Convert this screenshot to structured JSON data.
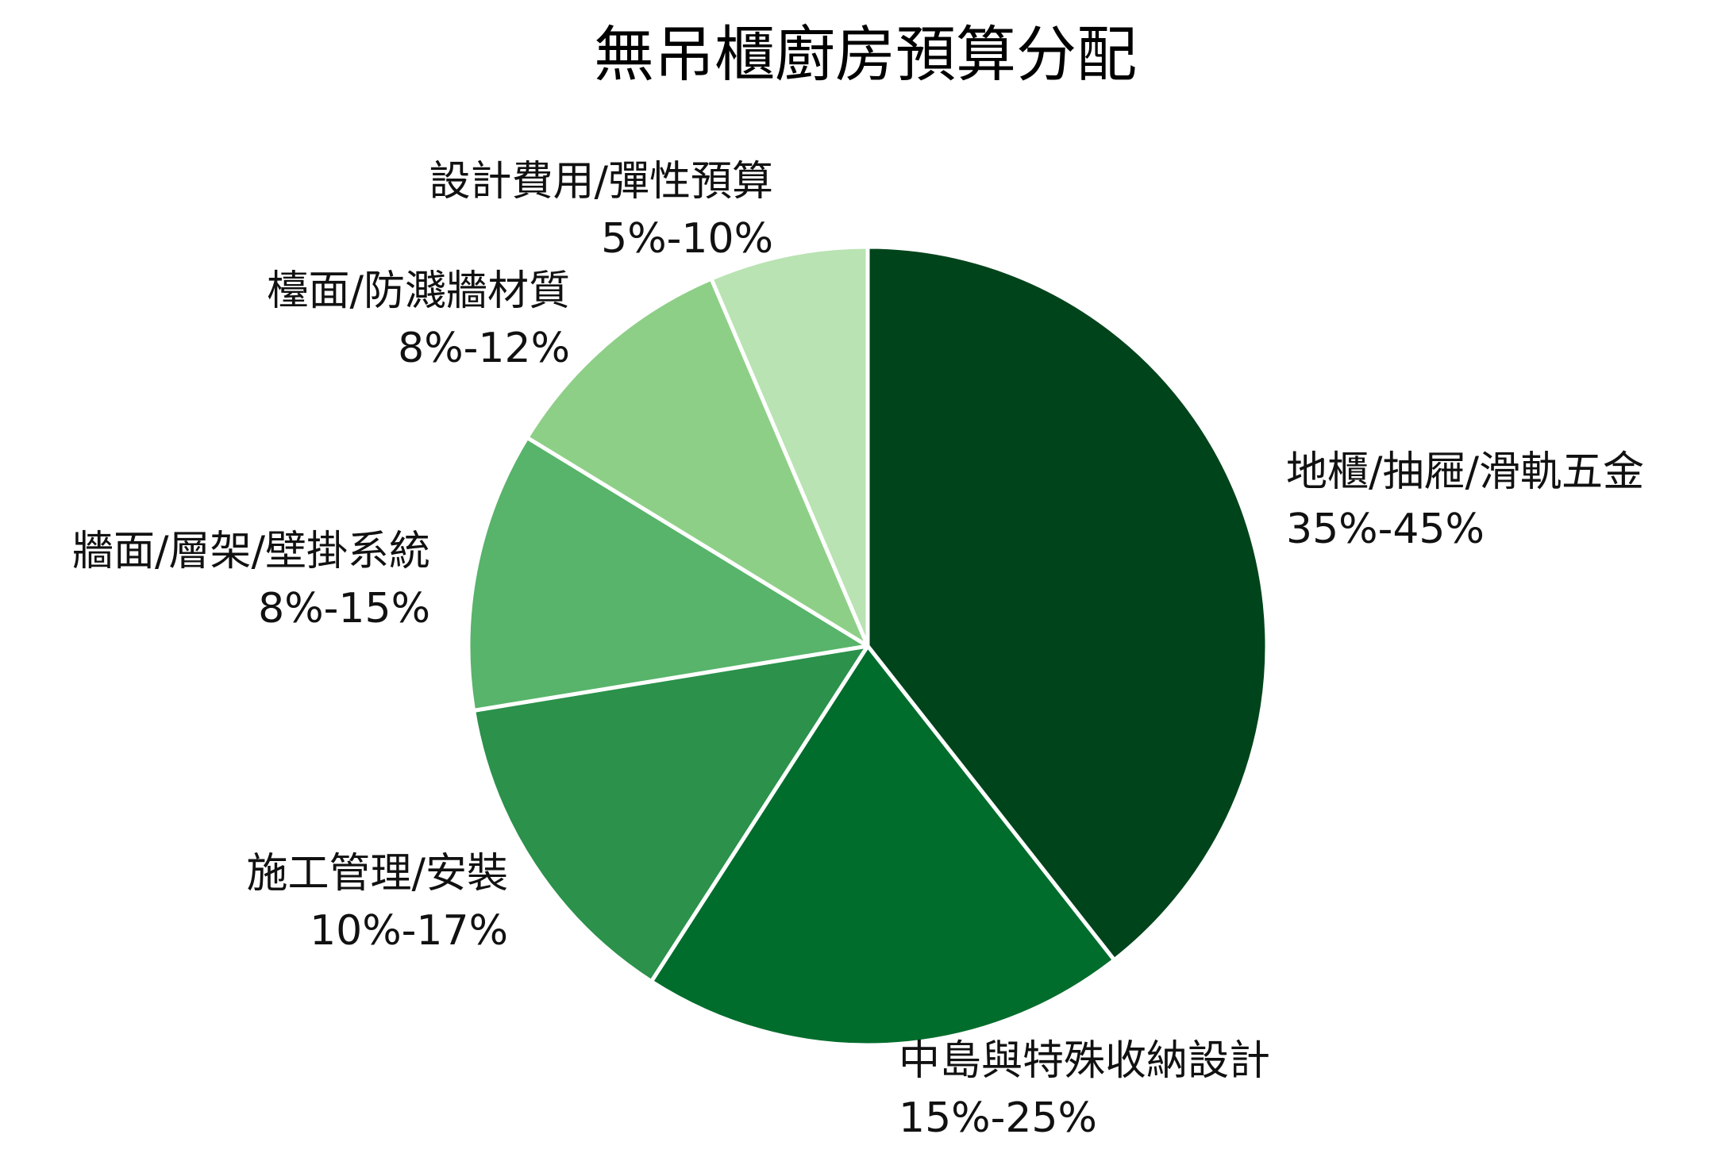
{
  "chart_data": {
    "type": "pie",
    "title": "無吊櫃廚房預算分配",
    "start_angle_deg": 90,
    "direction": "clockwise",
    "slices": [
      {
        "label": "地櫃/抽屜/滑軌五金",
        "range": "35%-45%",
        "value": 40,
        "color": "#00441b"
      },
      {
        "label": "中島與特殊收納設計",
        "range": "15%-25%",
        "value": 20,
        "color": "#006d2c"
      },
      {
        "label": "施工管理/安裝",
        "range": "10%-17%",
        "value": 13.5,
        "color": "#2b914b"
      },
      {
        "label": "牆面/層架/壁掛系統",
        "range": "8%-15%",
        "value": 11.5,
        "color": "#57b46a"
      },
      {
        "label": "檯面/防濺牆材質",
        "range": "8%-12%",
        "value": 10,
        "color": "#8ecf88"
      },
      {
        "label": "設計費用/彈性預算",
        "range": "5%-10%",
        "value": 6.5,
        "color": "#b9e3b2"
      }
    ],
    "legend": "none"
  }
}
